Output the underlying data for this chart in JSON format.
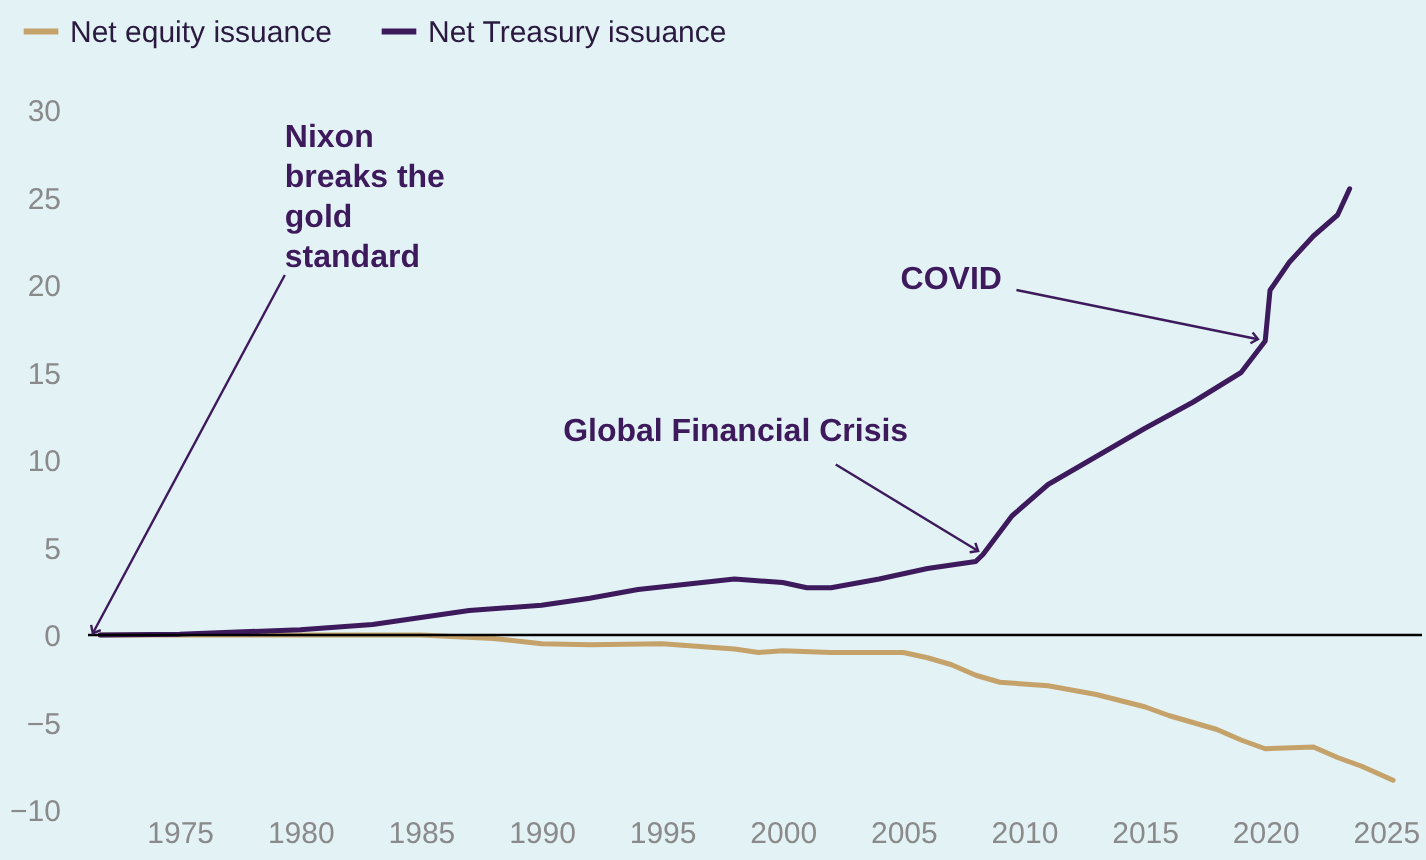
{
  "chart_data": {
    "type": "line",
    "legend": "top left",
    "grid": false,
    "line_style": "solid",
    "marker": "none",
    "xlim": [
      1971.2,
      2026.5
    ],
    "xticks": [
      1975,
      1980,
      1985,
      1990,
      1995,
      2000,
      2005,
      2010,
      2015,
      2020,
      2025
    ],
    "ylim": [
      -10,
      30
    ],
    "yticks": [
      -10,
      -5,
      0,
      5,
      10,
      15,
      20,
      25,
      30
    ],
    "series": [
      {
        "name": "Net equity issuance",
        "color": "#c4a26a",
        "x": [
          1971.7,
          1975,
          1980,
          1985,
          1988,
          1990,
          1992,
          1995,
          1998,
          1999,
          2000,
          2002,
          2005,
          2006,
          2007,
          2008,
          2009,
          2011,
          2013,
          2015,
          2016,
          2017,
          2018,
          2019,
          2020,
          2022,
          2023,
          2024,
          2025.3
        ],
        "values": [
          0,
          0,
          0,
          0,
          -0.2,
          -0.5,
          -0.55,
          -0.5,
          -0.8,
          -1.0,
          -0.9,
          -1.0,
          -1.0,
          -1.3,
          -1.7,
          -2.3,
          -2.7,
          -2.9,
          -3.4,
          -4.1,
          -4.6,
          -5.0,
          -5.4,
          -6.0,
          -6.5,
          -6.4,
          -7.0,
          -7.5,
          -8.3
        ]
      },
      {
        "name": "Net Treasury issuance",
        "color": "#3d1a5c",
        "x": [
          1971.7,
          1975,
          1980,
          1983,
          1985,
          1987,
          1990,
          1992,
          1994,
          1996,
          1998,
          2000,
          2001,
          2002,
          2004,
          2006,
          2008,
          2008.3,
          2009.5,
          2011,
          2013,
          2015,
          2017,
          2019,
          2020,
          2020.2,
          2021,
          2022,
          2022.5,
          2023,
          2023.5
        ],
        "values": [
          0,
          0.05,
          0.3,
          0.6,
          1.0,
          1.4,
          1.7,
          2.1,
          2.6,
          2.9,
          3.2,
          3.0,
          2.7,
          2.7,
          3.2,
          3.8,
          4.2,
          4.6,
          6.8,
          8.6,
          10.2,
          11.8,
          13.3,
          15.0,
          16.8,
          19.7,
          21.3,
          22.8,
          23.4,
          24.0,
          25.5
        ]
      }
    ],
    "ref_lines": [
      {
        "axis": "y",
        "value": 0,
        "color": "#000000",
        "line_style": "solid"
      }
    ],
    "annotations": [
      {
        "text": "Nixon\nbreaks the\ngold\nstandard",
        "x": 1971.4,
        "y": 0.1
      },
      {
        "text": "Global Financial Crisis",
        "x": 2008.1,
        "y": 4.8
      },
      {
        "text": "COVID",
        "x": 2019.7,
        "y": 16.9
      }
    ]
  }
}
